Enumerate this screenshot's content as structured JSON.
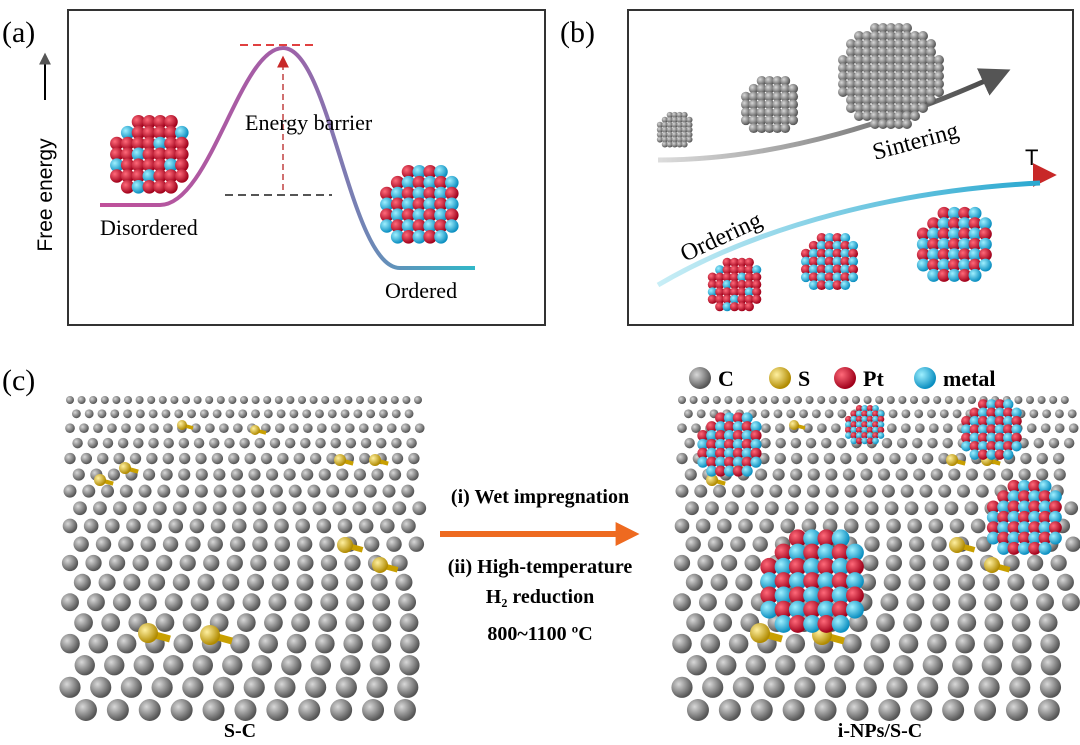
{
  "panel_a": {
    "label": "(a)",
    "y_axis": "Free energy",
    "barrier": "Energy barrier",
    "start": "Disordered",
    "end": "Ordered"
  },
  "panel_b": {
    "label": "(b)",
    "upper": "Sintering",
    "axis": "T",
    "lower": "Ordering"
  },
  "panel_c": {
    "label": "(c)",
    "legend": [
      "C",
      "S",
      "Pt",
      "metal"
    ],
    "steps": [
      "(i) Wet impregnation",
      "(ii) High-temperature",
      "H₂ reduction",
      "800~1100 ºC"
    ],
    "left": "S-C",
    "right": "i-NPs/S-C"
  }
}
